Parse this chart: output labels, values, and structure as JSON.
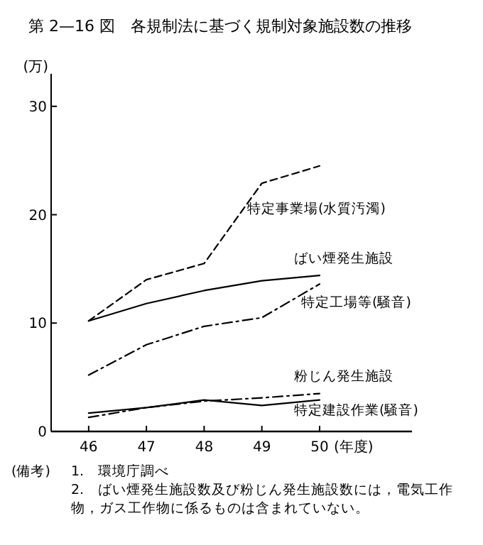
{
  "chart_data": {
    "type": "line",
    "title": "第 2—16 図　各規制法に基づく規制対象施設数の推移",
    "ylabel": "(万)",
    "xlabel": "(年度)",
    "x": [
      46,
      47,
      48,
      49,
      50
    ],
    "xlim": [
      45.35,
      51.6
    ],
    "xticks": [
      46,
      47,
      48,
      49,
      50
    ],
    "ylim": [
      0,
      33
    ],
    "yticks": [
      0,
      10,
      20,
      30
    ],
    "grid": false,
    "marker": "none",
    "series": [
      {
        "name": "特定事業場(水質汚濁)",
        "color": "#000000",
        "line_style": "dashed",
        "values": [
          10.2,
          14.0,
          15.5,
          22.9,
          24.5
        ]
      },
      {
        "name": "ばい煙発生施設",
        "color": "#000000",
        "line_style": "solid",
        "values": [
          10.2,
          11.8,
          13.0,
          13.9,
          14.4
        ]
      },
      {
        "name": "特定工場等(騒音)",
        "color": "#000000",
        "line_style": "dashdot",
        "values": [
          5.2,
          8.0,
          9.7,
          10.5,
          13.6
        ]
      },
      {
        "name": "粉じん発生施設",
        "color": "#000000",
        "line_style": "dashdot",
        "values": [
          1.3,
          2.2,
          2.8,
          3.1,
          3.5
        ]
      },
      {
        "name": "特定建設作業(騒音)",
        "color": "#000000",
        "line_style": "solid",
        "values": [
          1.7,
          2.2,
          2.9,
          2.4,
          2.9
        ]
      }
    ],
    "annotations": [
      "(備考)",
      "1.　環境庁調べ",
      "2.　ばい煙発生施設数及び粉じん発生施設数には，電気工作物，ガス工作物に係るものは含まれていない。"
    ]
  }
}
